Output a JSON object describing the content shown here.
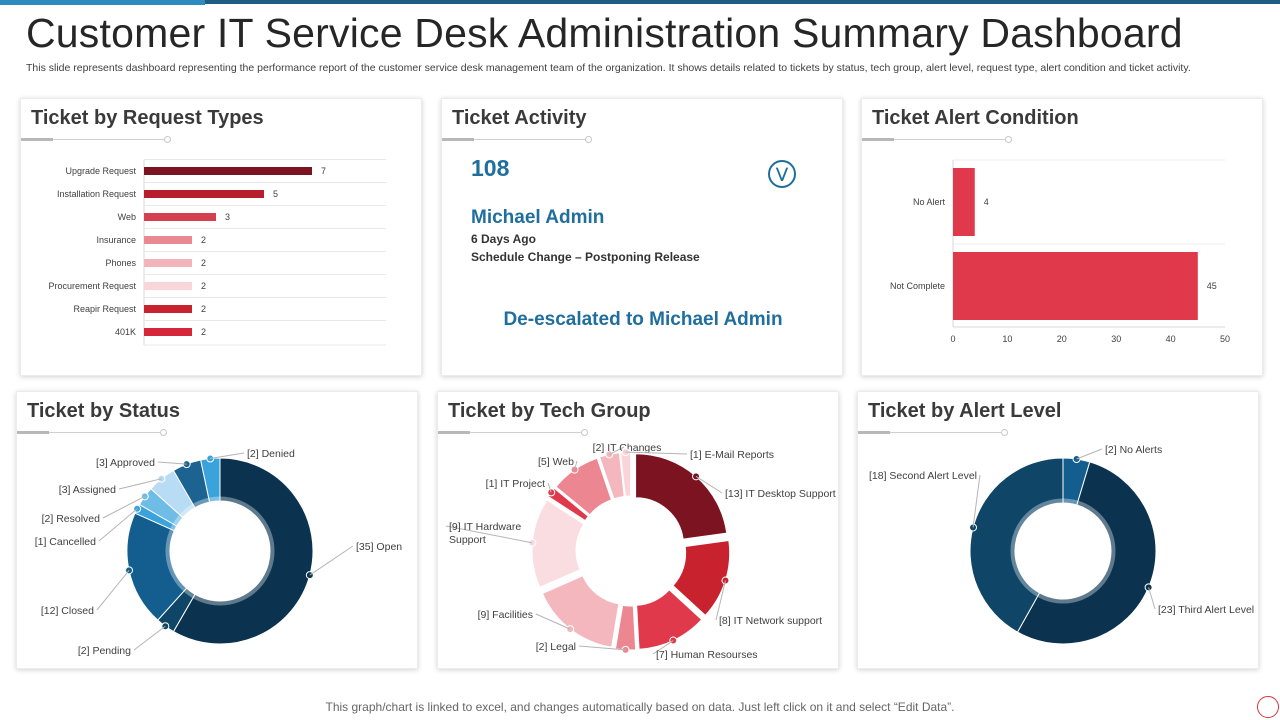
{
  "header": {
    "title": "Customer IT Service Desk Administration Summary Dashboard",
    "subtitle": "This slide represents dashboard representing the performance report of the customer service desk management team of the organization. It shows details related to tickets by status, tech group, alert level, request type, alert condition and ticket activity."
  },
  "footer": {
    "note": "This graph/chart is linked to excel,  and changes automatically based on data. Just left click on it and select “Edit Data”."
  },
  "activity": {
    "title": "Ticket Activity",
    "count": "108",
    "name": "Michael Admin",
    "time": "6 Days Ago",
    "description": "Schedule Change – Postponing Release",
    "status": "De-escalated to Michael Admin",
    "chevron_icon": "double-chevron-down-icon"
  },
  "colors": {
    "navy": "#0b3350",
    "red": "#e0394b",
    "dark_red": "#7b1420",
    "accent_blue": "#1f6e9e"
  },
  "chart_data": [
    {
      "id": "request",
      "type": "bar",
      "orientation": "horizontal",
      "title": "Ticket by Request Types",
      "categories": [
        "Upgrade Request",
        "Installation Request",
        "Web",
        "Insurance",
        "Phones",
        "Procurement Request",
        "Reapir Request",
        "401K"
      ],
      "values": [
        7,
        5,
        3,
        2,
        2,
        2,
        2,
        2
      ],
      "colors": [
        "#7b1420",
        "#b81d2c",
        "#d4404f",
        "#e98a93",
        "#f2b3b9",
        "#f9d6da",
        "#c8222f",
        "#d4283a"
      ],
      "xlim": [
        0,
        10
      ]
    },
    {
      "id": "alertcond",
      "type": "bar",
      "orientation": "horizontal",
      "title": "Ticket Alert Condition",
      "categories": [
        "No Alert",
        "Not Complete"
      ],
      "values": [
        4,
        45
      ],
      "color": "#e0394b",
      "xlim": [
        0,
        50
      ],
      "xticks": [
        0,
        10,
        20,
        30,
        40,
        50
      ]
    },
    {
      "id": "status",
      "type": "pie",
      "style": "donut",
      "title": "Ticket by Status",
      "labels": [
        "Open",
        "Pending",
        "Closed",
        "Cancelled",
        "Resolved",
        "Assigned",
        "Approved",
        "Denied"
      ],
      "values": [
        35,
        2,
        12,
        1,
        2,
        3,
        3,
        2
      ],
      "display": [
        "[35] Open",
        "[2] Pending",
        "[12] Closed",
        "[1] Cancelled",
        "[2] Resolved",
        "[3] Assigned",
        "[3] Approved",
        "[2] Denied"
      ],
      "colors": [
        "#0b3350",
        "#0f4566",
        "#135e8f",
        "#3aa3db",
        "#6fbde6",
        "#b8dcf3",
        "#1d6391",
        "#3aa3db"
      ]
    },
    {
      "id": "tech",
      "type": "pie",
      "style": "donut",
      "title": "Ticket by Tech Group",
      "labels": [
        "IT Desktop Support",
        "IT Network support",
        "Human Resourses",
        "Legal",
        "Facilities",
        "IT Hardware Support",
        "IT Project",
        "Web",
        "IT Changes",
        "E-Mail Reports"
      ],
      "values": [
        13,
        8,
        7,
        2,
        9,
        9,
        1,
        5,
        2,
        1
      ],
      "display": [
        "[13] IT Desktop Support",
        "[8] IT Network support",
        "[7] Human Resourses",
        "[2] Legal",
        "[9] Facilities",
        "[9] IT Hardware Support",
        "[1] IT Project",
        "[5] Web",
        "[2] IT Changes",
        "[1] E-Mail Reports"
      ],
      "colors": [
        "#7b1420",
        "#c8222f",
        "#e0394b",
        "#ec8791",
        "#f4b7be",
        "#fadde1",
        "#e0394b",
        "#ec8791",
        "#f4b7be",
        "#f9d5d9"
      ]
    },
    {
      "id": "alertlevel",
      "type": "pie",
      "style": "donut",
      "title": "Ticket by Alert Level",
      "labels": [
        "No Alerts",
        "Third Alert Level",
        "Second Alert Level"
      ],
      "values": [
        2,
        23,
        18
      ],
      "display": [
        "[2] No Alerts",
        "[23] Third Alert Level",
        "[18] Second Alert Level"
      ],
      "colors": [
        "#135e8f",
        "#0b3350",
        "#0f4566"
      ]
    }
  ]
}
